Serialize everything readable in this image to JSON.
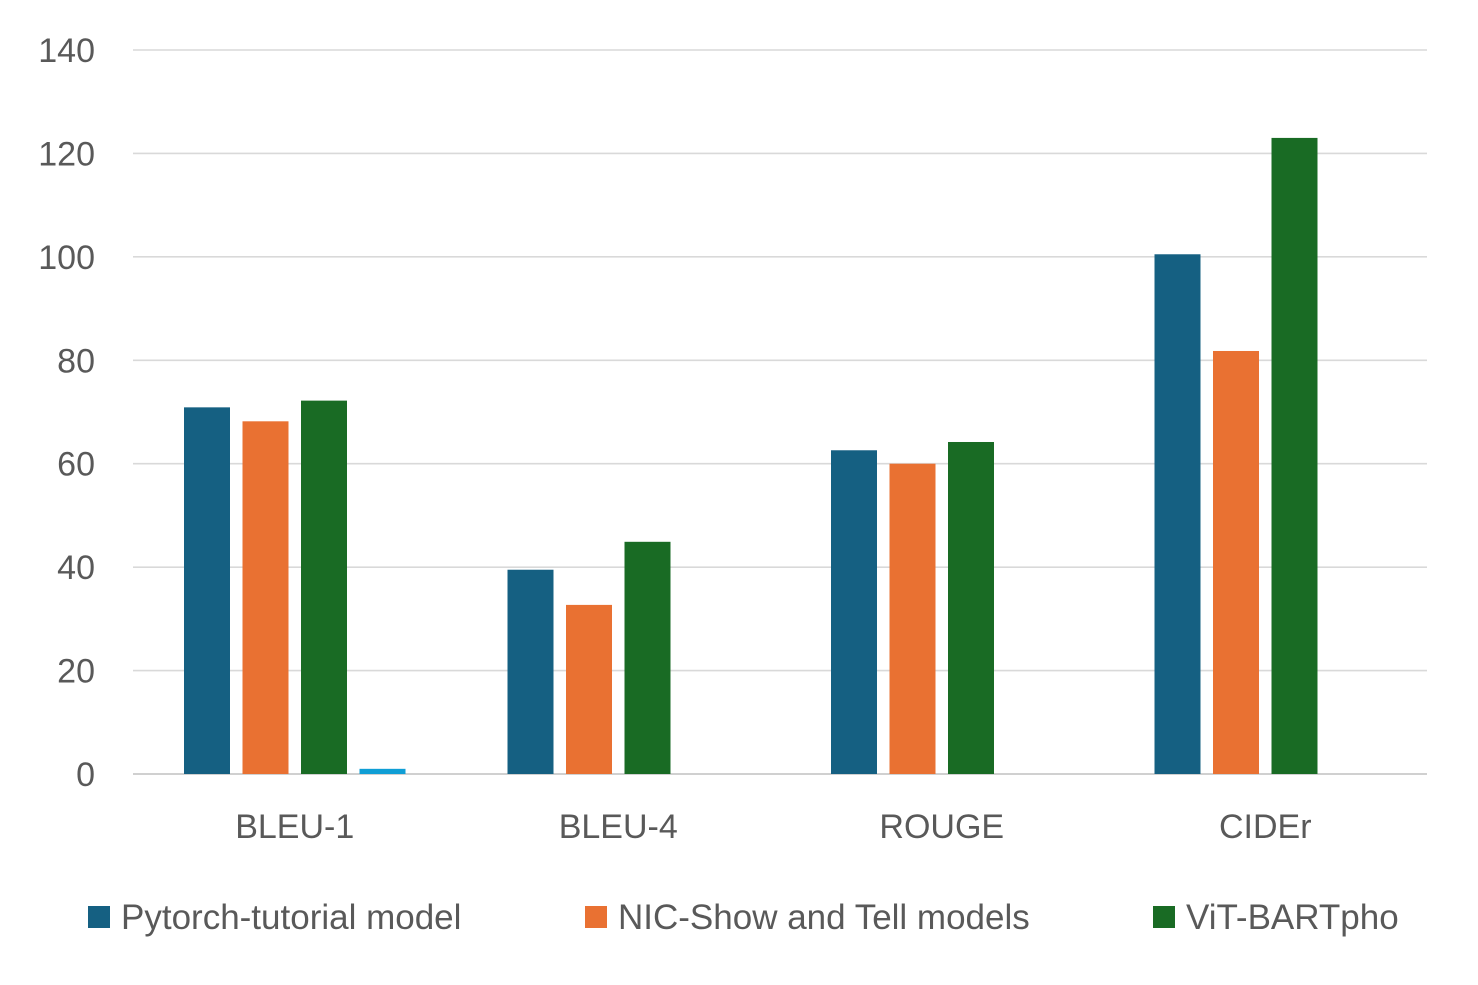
{
  "chart_data": {
    "type": "bar",
    "title": "",
    "xlabel": "",
    "ylabel": "",
    "categories": [
      "BLEU-1",
      "BLEU-4",
      "ROUGE",
      "CIDEr"
    ],
    "ylim": [
      0,
      140
    ],
    "yticks": [
      0,
      20,
      40,
      60,
      80,
      100,
      120,
      140
    ],
    "grid": true,
    "legend_position": "bottom",
    "series": [
      {
        "name": "Pytorch-tutorial model",
        "color": "#156082",
        "values": [
          70.9,
          39.5,
          62.6,
          100.5
        ],
        "in_legend": true
      },
      {
        "name": "NIC-Show and Tell models",
        "color": "#E97132",
        "values": [
          68.2,
          32.7,
          60.0,
          81.8
        ],
        "in_legend": true
      },
      {
        "name": "ViT-BARTpho",
        "color": "#196B24",
        "values": [
          72.2,
          44.9,
          64.2,
          123.0
        ],
        "in_legend": true
      },
      {
        "values": [
          1.0,
          0,
          0,
          0
        ],
        "color": "#0F9ED5",
        "in_legend": false
      }
    ]
  }
}
